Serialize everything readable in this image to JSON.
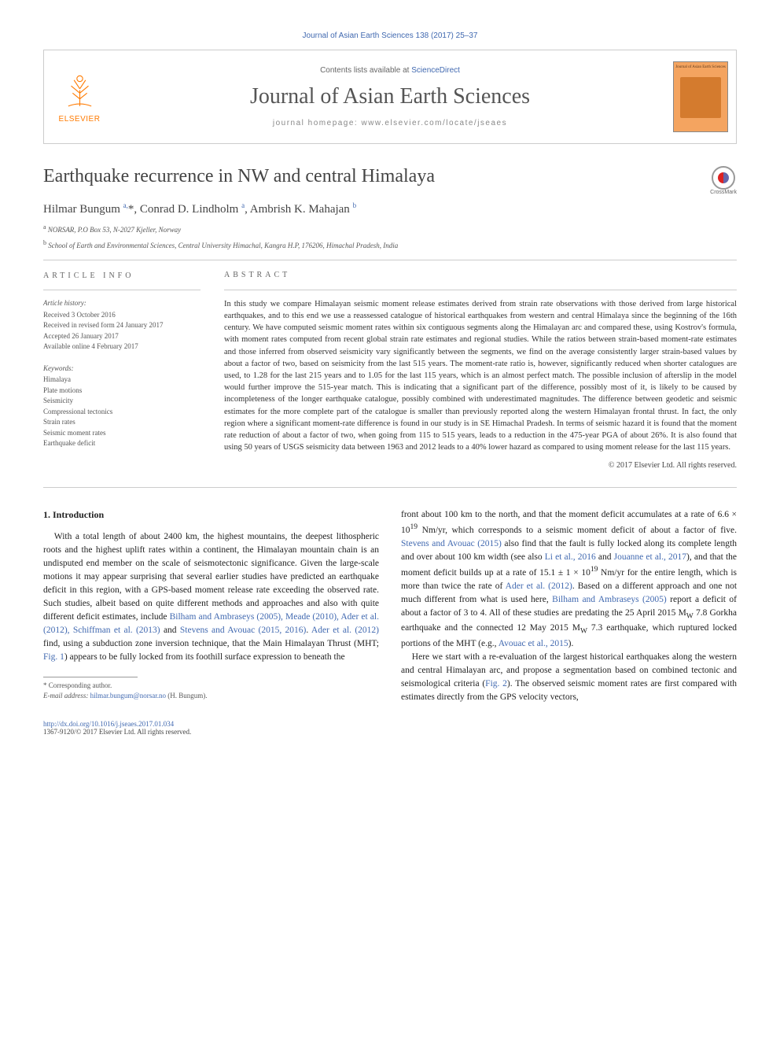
{
  "header": {
    "citation": "Journal of Asian Earth Sciences 138 (2017) 25–37",
    "contents_prefix": "Contents lists available at ",
    "contents_link": "ScienceDirect",
    "journal_name": "Journal of Asian Earth Sciences",
    "homepage_label": "journal homepage: www.elsevier.com/locate/jseaes",
    "publisher_name": "ELSEVIER",
    "cover_title": "Journal of\nAsian Earth Sciences"
  },
  "article": {
    "title": "Earthquake recurrence in NW and central Himalaya",
    "crossmark_label": "CrossMark",
    "authors_html": "Hilmar Bungum <sup>a,</sup>*, Conrad D. Lindholm <sup>a</sup>, Ambrish K. Mahajan <sup>b</sup>",
    "affiliations": [
      {
        "sup": "a",
        "text": "NORSAR, P.O Box 53, N-2027 Kjeller, Norway"
      },
      {
        "sup": "b",
        "text": "School of Earth and Environmental Sciences, Central University Himachal, Kangra H.P, 176206, Himachal Pradesh, India"
      }
    ]
  },
  "meta": {
    "info_heading": "ARTICLE INFO",
    "history_title": "Article history:",
    "history": [
      "Received 3 October 2016",
      "Received in revised form 24 January 2017",
      "Accepted 26 January 2017",
      "Available online 4 February 2017"
    ],
    "keywords_title": "Keywords:",
    "keywords": [
      "Himalaya",
      "Plate motions",
      "Seismicity",
      "Compressional tectonics",
      "Strain rates",
      "Seismic moment rates",
      "Earthquake deficit"
    ]
  },
  "abstract": {
    "heading": "ABSTRACT",
    "text": "In this study we compare Himalayan seismic moment release estimates derived from strain rate observations with those derived from large historical earthquakes, and to this end we use a reassessed catalogue of historical earthquakes from western and central Himalaya since the beginning of the 16th century. We have computed seismic moment rates within six contiguous segments along the Himalayan arc and compared these, using Kostrov's formula, with moment rates computed from recent global strain rate estimates and regional studies. While the ratios between strain-based moment-rate estimates and those inferred from observed seismicity vary significantly between the segments, we find on the average consistently larger strain-based values by about a factor of two, based on seismicity from the last 515 years. The moment-rate ratio is, however, significantly reduced when shorter catalogues are used, to 1.28 for the last 215 years and to 1.05 for the last 115 years, which is an almost perfect match. The possible inclusion of afterslip in the model would further improve the 515-year match. This is indicating that a significant part of the difference, possibly most of it, is likely to be caused by incompleteness of the longer earthquake catalogue, possibly combined with underestimated magnitudes. The difference between geodetic and seismic estimates for the more complete part of the catalogue is smaller than previously reported along the western Himalayan frontal thrust. In fact, the only region where a significant moment-rate difference is found in our study is in SE Himachal Pradesh. In terms of seismic hazard it is found that the moment rate reduction of about a factor of two, when going from 115 to 515 years, leads to a reduction in the 475-year PGA of about 26%. It is also found that using 50 years of USGS seismicity data between 1963 and 2012 leads to a 40% lower hazard as compared to using moment release for the last 115 years.",
    "copyright": "© 2017 Elsevier Ltd. All rights reserved."
  },
  "introduction": {
    "heading": "1. Introduction",
    "p1_html": "With a total length of about 2400 km, the highest mountains, the deepest lithospheric roots and the highest uplift rates within a continent, the Himalayan mountain chain is an undisputed end member on the scale of seismotectonic significance. Given the large-scale motions it may appear surprising that several earlier studies have predicted an earthquake deficit in this region, with a GPS-based moment release rate exceeding the observed rate. Such studies, albeit based on quite different methods and approaches and also with quite different deficit estimates, include <a>Bilham and Ambraseys (2005), Meade (2010), Ader et al. (2012), Schiffman et al. (2013)</a> and <a>Stevens and Avouac (2015, 2016)</a>. <a>Ader et al. (2012)</a> find, using a subduction zone inversion technique, that the Main Himalayan Thrust (MHT; <a>Fig. 1</a>) appears to be fully locked from its foothill surface expression to beneath the",
    "p1b_html": "front about 100 km to the north, and that the moment deficit accumulates at a rate of 6.6 × 10<sup>19</sup> Nm/yr, which corresponds to a seismic moment deficit of about a factor of five. <a>Stevens and Avouac (2015)</a> also find that the fault is fully locked along its complete length and over about 100 km width (see also <a>Li et al., 2016</a> and <a>Jouanne et al., 2017</a>), and that the moment deficit builds up at a rate of 15.1 ± 1 × 10<sup>19</sup> Nm/yr for the entire length, which is more than twice the rate of <a>Ader et al. (2012)</a>. Based on a different approach and one not much different from what is used here, <a>Bilham and Ambraseys (2005)</a> report a deficit of about a factor of 3 to 4. All of these studies are predating the 25 April 2015 M<sub>W</sub> 7.8 Gorkha earthquake and the connected 12 May 2015 M<sub>W</sub> 7.3 earthquake, which ruptured locked portions of the MHT (e.g., <a>Avouac et al., 2015</a>).",
    "p2_html": "Here we start with a re-evaluation of the largest historical earthquakes along the western and central Himalayan arc, and propose a segmentation based on combined tectonic and seismological criteria (<a>Fig. 2</a>). The observed seismic moment rates are first compared with estimates directly from the GPS velocity vectors,"
  },
  "footnotes": {
    "corresponding": "* Corresponding author.",
    "email_label": "E-mail address:",
    "email": "hilmar.bungum@norsar.no",
    "email_author": "(H. Bungum)."
  },
  "bottom": {
    "doi_label": "http://dx.doi.org/10.1016/j.jseaes.2017.01.034",
    "issn_line": "1367-9120/© 2017 Elsevier Ltd. All rights reserved."
  },
  "colors": {
    "link": "#4169b0",
    "orange": "#ff7a00",
    "cover_bg": "#f4a460"
  }
}
